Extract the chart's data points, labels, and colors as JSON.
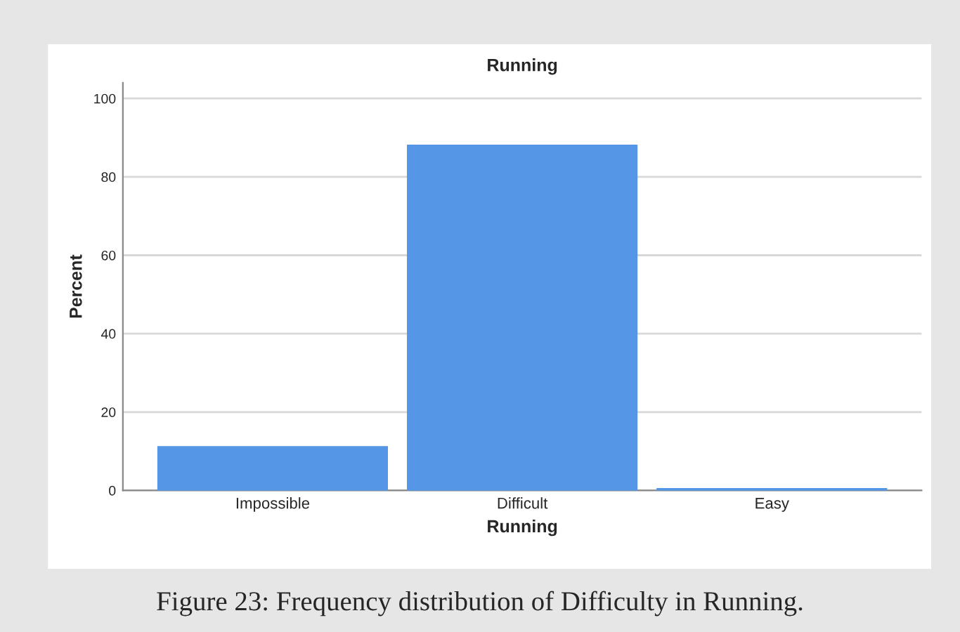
{
  "chart_data": {
    "type": "bar",
    "title": "Running",
    "xlabel": "Running",
    "ylabel": "Percent",
    "categories": [
      "Impossible",
      "Difficult",
      "Easy"
    ],
    "values": [
      11.2,
      88.1,
      0.5
    ],
    "color": "#5596e6",
    "ylim": [
      0,
      104
    ],
    "yticks": [
      0,
      20,
      40,
      60,
      80,
      100
    ],
    "grid": "y",
    "annotations": [
      "Figure 23: Frequency distribution of Difficulty in Running."
    ]
  }
}
